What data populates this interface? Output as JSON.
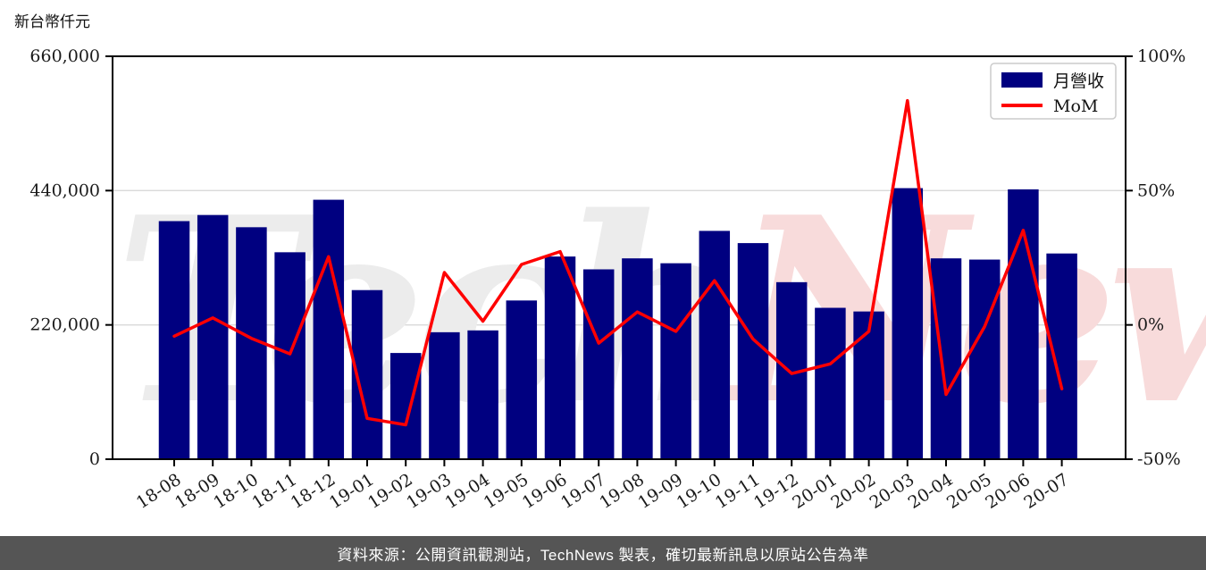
{
  "page": {
    "footer": "資料來源：公開資訊觀測站，TechNews 製表，確切最新訊息以原站公告為準"
  },
  "chart_data": {
    "type": "bar",
    "title": "",
    "categories": [
      "18-08",
      "18-09",
      "18-10",
      "18-11",
      "18-12",
      "19-01",
      "19-02",
      "19-03",
      "19-04",
      "19-05",
      "19-06",
      "19-07",
      "19-08",
      "19-09",
      "19-10",
      "19-11",
      "19-12",
      "20-01",
      "20-02",
      "20-03",
      "20-04",
      "20-05",
      "20-06",
      "20-07"
    ],
    "series": [
      {
        "name": "月營收",
        "type": "bar",
        "axis": "left",
        "color": "#000080",
        "values": [
          390000,
          400000,
          380000,
          339000,
          425000,
          277000,
          174000,
          208000,
          211000,
          260000,
          332000,
          311000,
          329000,
          321000,
          374000,
          354000,
          290000,
          248000,
          242000,
          444000,
          329000,
          327000,
          442000,
          337000
        ]
      },
      {
        "name": "MoM",
        "type": "line",
        "axis": "right",
        "color": "#ff0000",
        "values": [
          -4.2,
          2.6,
          -5,
          -10.8,
          25.4,
          -34.8,
          -37.2,
          19.5,
          1.4,
          22.5,
          27.3,
          -6.8,
          4.8,
          -2.4,
          16.5,
          -5.3,
          -18.1,
          -14.5,
          -2.4,
          83.5,
          -25.9,
          -0.6,
          35.2,
          -23.8
        ]
      }
    ],
    "left_axis": {
      "title": "新台幣仟元",
      "range": [
        0,
        660000
      ],
      "tick_values": [
        0,
        220000,
        440000,
        660000
      ],
      "tick_labels": [
        "0",
        "220,000",
        "440,000",
        "660,000"
      ]
    },
    "right_axis": {
      "range": [
        -50,
        100
      ],
      "tick_values": [
        -50,
        0,
        50,
        100
      ],
      "tick_labels": [
        "-50%",
        "0%",
        "50%",
        "100%"
      ]
    },
    "legend": {
      "position": "top-right",
      "items": [
        "月營收",
        "MoM"
      ]
    },
    "grid": "horizontal",
    "watermark": {
      "part1": "Tech",
      "part2": "News",
      "color1": "#ececec",
      "color2": "#f8dbdb"
    },
    "colors": {
      "spine": "#000000",
      "gridline": "#d9d9d9",
      "tick_text": "#1a1a1a"
    }
  }
}
